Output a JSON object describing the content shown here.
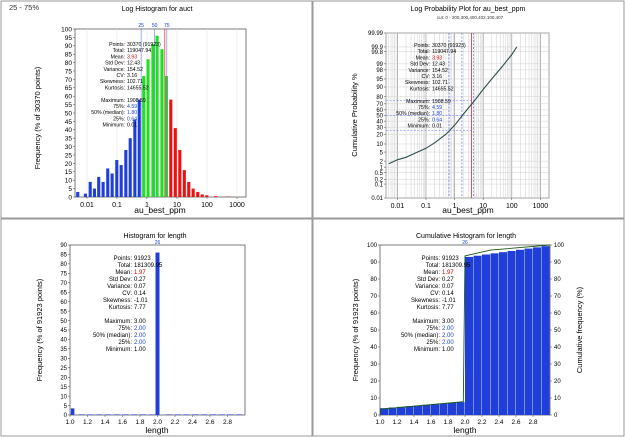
{
  "panels": {
    "log_hist": {
      "title": "Log Histogram for auct",
      "corner_label": "25 - 75%",
      "quartile_marks": [
        "25",
        "50",
        "75"
      ],
      "xlabel": "au_best_ppm",
      "ylabel": "Frequency (% of 30370 points)",
      "x_ticks": [
        "0.01",
        "0.1",
        "1",
        "10",
        "100",
        "1000"
      ],
      "y_ticks": [
        "0",
        "5",
        "10",
        "15",
        "20",
        "25",
        "30",
        "35",
        "40",
        "45",
        "50",
        "55",
        "60",
        "65",
        "70",
        "75",
        "80",
        "85",
        "90",
        "95",
        "100"
      ]
    },
    "log_prob": {
      "title": "Log Probability Plot for au_best_ppm",
      "subtitle": "cut: 0 - 200,300,400,402,100,407",
      "xlabel": "au_best_ppm",
      "ylabel": "Cumulative Probability %",
      "x_ticks": [
        "0.01",
        "0.1",
        "1",
        "10",
        "100",
        "1000"
      ],
      "y_ticks": [
        "0.01",
        "0.1",
        "0.2",
        "0.5",
        "1",
        "2",
        "5",
        "10",
        "20",
        "30",
        "40",
        "50",
        "60",
        "70",
        "80",
        "90",
        "95",
        "98",
        "99",
        "99.8",
        "99.9",
        "99.99"
      ]
    },
    "hist_length": {
      "title": "Histogram for length",
      "xlabel": "length",
      "ylabel": "Frequency (% of 91923 points)",
      "x_ticks": [
        "1.0",
        "1.2",
        "1.4",
        "1.6",
        "1.8",
        "2.0",
        "2.2",
        "2.4",
        "2.6",
        "2.8"
      ],
      "y_ticks": [
        "0",
        "5",
        "10",
        "15",
        "20",
        "25",
        "30",
        "35",
        "40",
        "45",
        "50",
        "55",
        "60",
        "65",
        "70",
        "75",
        "80",
        "85",
        "90"
      ],
      "peak_mark": "26"
    },
    "cum_hist_length": {
      "title": "Cumulative Histogram for length",
      "xlabel": "length",
      "ylabel": "Frequency (% of 91923 points)",
      "ylabel_right": "Cumulative frequency (%)",
      "x_ticks": [
        "1.0",
        "1.2",
        "1.4",
        "1.6",
        "1.8",
        "2.0",
        "2.2",
        "2.4",
        "2.6",
        "2.8"
      ],
      "y_ticks": [
        "0",
        "10",
        "20",
        "30",
        "40",
        "50",
        "60",
        "70",
        "80",
        "90",
        "100"
      ],
      "y_ticks_right": [
        "0",
        "10",
        "20",
        "30",
        "40",
        "50",
        "60",
        "70",
        "80",
        "90",
        "100"
      ],
      "peak_mark": "26"
    }
  },
  "stats_au": [
    {
      "label": "Points:",
      "value": "30370 (91923)",
      "color": "#000000"
    },
    {
      "label": "Total:",
      "value": "119047.94",
      "color": "#000000"
    },
    {
      "label": "Mean:",
      "value": "3.93",
      "color": "#d00000"
    },
    {
      "label": "Std Dev:",
      "value": "12.43",
      "color": "#000000"
    },
    {
      "label": "Variance:",
      "value": "154.52",
      "color": "#000000"
    },
    {
      "label": "CV:",
      "value": "3.16",
      "color": "#000000"
    },
    {
      "label": "Skewness:",
      "value": "102.71",
      "color": "#000000"
    },
    {
      "label": "Kurtosis:",
      "value": "14655.52",
      "color": "#000000"
    },
    {
      "label": "",
      "value": "",
      "color": "#000000"
    },
    {
      "label": "Maximum:",
      "value": "1908.59",
      "color": "#000000"
    },
    {
      "label": "75%:",
      "value": "4.59",
      "color": "#1a3fd0"
    },
    {
      "label": "50% (median):",
      "value": "1.80",
      "color": "#1a3fd0"
    },
    {
      "label": "25%:",
      "value": "0.64",
      "color": "#1a3fd0"
    },
    {
      "label": "Minimum:",
      "value": "0.01",
      "color": "#000000"
    }
  ],
  "stats_length": [
    {
      "label": "Points:",
      "value": "91923",
      "color": "#000000"
    },
    {
      "label": "Total:",
      "value": "181309.95",
      "color": "#000000"
    },
    {
      "label": "Mean:",
      "value": "1.97",
      "color": "#d00000"
    },
    {
      "label": "Std Dev:",
      "value": "0.27",
      "color": "#000000"
    },
    {
      "label": "Variance:",
      "value": "0.07",
      "color": "#000000"
    },
    {
      "label": "CV:",
      "value": "0.14",
      "color": "#000000"
    },
    {
      "label": "Skewness:",
      "value": "-1.01",
      "color": "#000000"
    },
    {
      "label": "Kurtosis:",
      "value": "7.77",
      "color": "#000000"
    },
    {
      "label": "",
      "value": "",
      "color": "#000000"
    },
    {
      "label": "Maximum:",
      "value": "3.00",
      "color": "#000000"
    },
    {
      "label": "75%:",
      "value": "2.00",
      "color": "#1a3fd0"
    },
    {
      "label": "50% (median):",
      "value": "2.00",
      "color": "#1a3fd0"
    },
    {
      "label": "25%:",
      "value": "2.00",
      "color": "#1a3fd0"
    },
    {
      "label": "Minimum:",
      "value": "1.00",
      "color": "#000000"
    }
  ],
  "colors": {
    "below_q1": "#1f3fd8",
    "interquartile": "#22dd22",
    "above_q3": "#ee1111",
    "bar": "#1f3fd8",
    "curve": "#2f4f4f",
    "mean_line": "#ee2222",
    "quartile_line": "#6677ee"
  },
  "chart_data": [
    {
      "type": "bar",
      "title": "Log Histogram for auct",
      "xlabel": "au_best_ppm",
      "ylabel": "Frequency (% of 30370 points)",
      "x_scale": "log",
      "xlim": [
        0.004,
        2000
      ],
      "ylim": [
        0,
        100
      ],
      "quartiles": {
        "q1": 0.64,
        "median": 1.8,
        "q3": 4.59,
        "mean": 3.93
      },
      "bins": [
        {
          "x": 0.005,
          "y": 3
        },
        {
          "x": 0.009,
          "y": 2
        },
        {
          "x": 0.013,
          "y": 9
        },
        {
          "x": 0.018,
          "y": 5
        },
        {
          "x": 0.025,
          "y": 12
        },
        {
          "x": 0.035,
          "y": 9
        },
        {
          "x": 0.05,
          "y": 17
        },
        {
          "x": 0.07,
          "y": 14
        },
        {
          "x": 0.1,
          "y": 22
        },
        {
          "x": 0.14,
          "y": 19
        },
        {
          "x": 0.2,
          "y": 28
        },
        {
          "x": 0.28,
          "y": 35
        },
        {
          "x": 0.4,
          "y": 46
        },
        {
          "x": 0.56,
          "y": 58
        },
        {
          "x": 0.79,
          "y": 72
        },
        {
          "x": 1.1,
          "y": 82
        },
        {
          "x": 1.6,
          "y": 91
        },
        {
          "x": 2.2,
          "y": 96
        },
        {
          "x": 3.2,
          "y": 88
        },
        {
          "x": 4.5,
          "y": 72
        },
        {
          "x": 6.3,
          "y": 58
        },
        {
          "x": 8.9,
          "y": 41
        },
        {
          "x": 12.6,
          "y": 28
        },
        {
          "x": 17.8,
          "y": 16
        },
        {
          "x": 25,
          "y": 9
        },
        {
          "x": 35,
          "y": 5
        },
        {
          "x": 50,
          "y": 3
        },
        {
          "x": 70,
          "y": 1.5
        },
        {
          "x": 100,
          "y": 1
        },
        {
          "x": 200,
          "y": 0.5
        },
        {
          "x": 500,
          "y": 0.3
        }
      ]
    },
    {
      "type": "line",
      "title": "Log Probability Plot for au_best_ppm",
      "xlabel": "au_best_ppm",
      "ylabel": "Cumulative Probability %",
      "x_scale": "log",
      "y_scale": "probability",
      "xlim": [
        0.004,
        2000
      ],
      "ylim": [
        0.01,
        99.99
      ],
      "reference_lines": {
        "q1": 0.64,
        "median": 1.8,
        "q3": 4.59,
        "mean": 3.93
      },
      "x": [
        0.005,
        0.01,
        0.02,
        0.05,
        0.1,
        0.2,
        0.5,
        1,
        2,
        5,
        10,
        20,
        50,
        100,
        150
      ],
      "y": [
        1.5,
        2.3,
        3,
        5,
        7,
        11,
        20,
        33,
        52,
        75,
        88,
        95,
        98.8,
        99.7,
        99.9
      ]
    },
    {
      "type": "bar",
      "title": "Histogram for length",
      "xlabel": "length",
      "ylabel": "Frequency (% of 91923 points)",
      "xlim": [
        1.0,
        3.0
      ],
      "ylim": [
        0,
        90
      ],
      "bins": [
        {
          "x": 1.01,
          "y": 3.5
        },
        {
          "x": 1.1,
          "y": 0.3
        },
        {
          "x": 1.2,
          "y": 0.3
        },
        {
          "x": 1.3,
          "y": 0.3
        },
        {
          "x": 1.4,
          "y": 0.3
        },
        {
          "x": 1.5,
          "y": 0.3
        },
        {
          "x": 1.6,
          "y": 0.3
        },
        {
          "x": 1.7,
          "y": 0.3
        },
        {
          "x": 1.8,
          "y": 0.3
        },
        {
          "x": 1.9,
          "y": 0.3
        },
        {
          "x": 2.0,
          "y": 86
        },
        {
          "x": 2.1,
          "y": 0.3
        },
        {
          "x": 2.2,
          "y": 0.3
        },
        {
          "x": 2.3,
          "y": 0.3
        },
        {
          "x": 2.4,
          "y": 0.3
        },
        {
          "x": 2.5,
          "y": 0.3
        },
        {
          "x": 2.6,
          "y": 0.3
        },
        {
          "x": 2.7,
          "y": 0.3
        },
        {
          "x": 2.8,
          "y": 0.3
        },
        {
          "x": 2.9,
          "y": 0.3
        }
      ]
    },
    {
      "type": "bar",
      "title": "Cumulative Histogram for length",
      "xlabel": "length",
      "ylabel": "Frequency (% of 91923 points)",
      "y2label": "Cumulative frequency (%)",
      "xlim": [
        1.0,
        3.0
      ],
      "ylim": [
        0,
        100
      ],
      "y2lim": [
        0,
        100
      ],
      "bins": [
        {
          "x": 1.05,
          "y": 4
        },
        {
          "x": 1.15,
          "y": 4.4
        },
        {
          "x": 1.25,
          "y": 4.8
        },
        {
          "x": 1.35,
          "y": 5.2
        },
        {
          "x": 1.45,
          "y": 5.6
        },
        {
          "x": 1.55,
          "y": 6
        },
        {
          "x": 1.65,
          "y": 6.4
        },
        {
          "x": 1.75,
          "y": 6.8
        },
        {
          "x": 1.85,
          "y": 7.2
        },
        {
          "x": 1.95,
          "y": 7.6
        },
        {
          "x": 2.05,
          "y": 93
        },
        {
          "x": 2.15,
          "y": 93.7
        },
        {
          "x": 2.25,
          "y": 94.4
        },
        {
          "x": 2.35,
          "y": 95.1
        },
        {
          "x": 2.45,
          "y": 95.8
        },
        {
          "x": 2.55,
          "y": 96.5
        },
        {
          "x": 2.65,
          "y": 97.2
        },
        {
          "x": 2.75,
          "y": 97.9
        },
        {
          "x": 2.85,
          "y": 98.6
        },
        {
          "x": 2.95,
          "y": 99.3
        }
      ],
      "cumulative_line": [
        {
          "x": 1.0,
          "y": 0
        },
        {
          "x": 1.02,
          "y": 3.5
        },
        {
          "x": 1.98,
          "y": 7.8
        },
        {
          "x": 2.0,
          "y": 93.6
        },
        {
          "x": 2.3,
          "y": 97
        },
        {
          "x": 3.0,
          "y": 100
        }
      ]
    }
  ]
}
